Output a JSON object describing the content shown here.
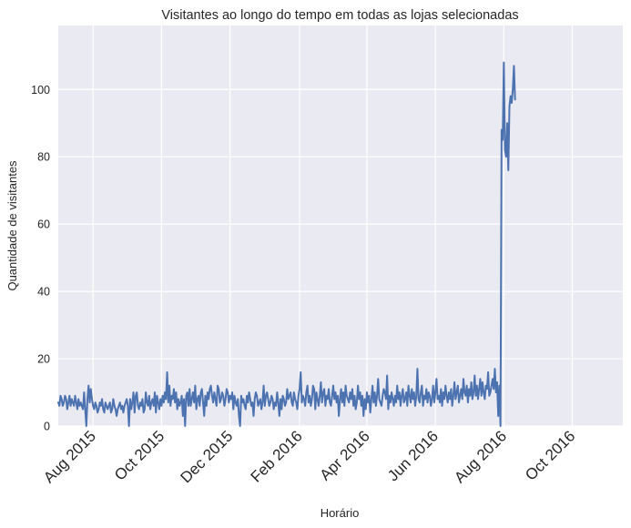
{
  "chart_data": {
    "type": "line",
    "title": "Visitantes ao longo do tempo em todas as lojas selecionadas",
    "xlabel": "Horário",
    "ylabel": "Quantidade de visitantes",
    "x_range": [
      "2015-07-01",
      "2016-11-15"
    ],
    "ylim": [
      0,
      119
    ],
    "y_ticks": [
      0,
      20,
      40,
      60,
      80,
      100
    ],
    "x_ticks": [
      {
        "date": "2015-08-01",
        "label": "Aug 2015"
      },
      {
        "date": "2015-10-01",
        "label": "Oct 2015"
      },
      {
        "date": "2015-12-01",
        "label": "Dec 2015"
      },
      {
        "date": "2016-02-01",
        "label": "Feb 2016"
      },
      {
        "date": "2016-04-01",
        "label": "Apr 2016"
      },
      {
        "date": "2016-06-01",
        "label": "Jun 2016"
      },
      {
        "date": "2016-08-01",
        "label": "Aug 2016"
      },
      {
        "date": "2016-10-01",
        "label": "Oct 2016"
      }
    ],
    "grid": true,
    "background": "#eaeaf2",
    "line_color": "#4c72b0",
    "series": [
      {
        "start_date": "2015-07-01",
        "step_days": 1,
        "values": [
          7,
          6,
          9,
          8,
          6,
          7,
          9,
          8,
          5,
          7,
          9,
          6,
          8,
          7,
          6,
          9,
          7,
          5,
          8,
          6,
          7,
          6,
          5,
          10,
          5,
          0,
          8,
          12,
          7,
          11,
          8,
          6,
          5,
          7,
          6,
          4,
          5,
          7,
          6,
          8,
          5,
          4,
          7,
          6,
          5,
          6,
          7,
          4,
          5,
          8,
          6,
          5,
          3,
          5,
          6,
          7,
          5,
          6,
          4,
          6,
          7,
          8,
          6,
          0,
          8,
          5,
          7,
          10,
          4,
          9,
          10,
          6,
          5,
          7,
          6,
          8,
          4,
          5,
          10,
          7,
          6,
          9,
          5,
          7,
          8,
          6,
          10,
          4,
          9,
          7,
          5,
          8,
          6,
          9,
          7,
          10,
          8,
          16,
          7,
          12,
          6,
          9,
          8,
          11,
          7,
          10,
          5,
          8,
          6,
          7,
          9,
          3,
          8,
          0,
          9,
          10,
          6,
          11,
          6,
          8,
          10,
          7,
          12,
          5,
          8,
          9,
          6,
          10,
          11,
          7,
          3,
          9,
          6,
          10,
          8,
          11,
          12,
          9,
          7,
          10,
          8,
          6,
          12,
          11,
          7,
          8,
          10,
          9,
          6,
          8,
          11,
          10,
          7,
          9,
          8,
          10,
          5,
          9,
          7,
          6,
          8,
          3,
          0,
          9,
          7,
          8,
          6,
          5,
          9,
          7,
          10,
          8,
          6,
          7,
          3,
          8,
          10,
          9,
          6,
          7,
          8,
          5,
          7,
          12,
          6,
          9,
          10,
          8,
          6,
          7,
          9,
          8,
          5,
          7,
          6,
          10,
          7,
          3,
          8,
          5,
          9,
          8,
          6,
          7,
          11,
          8,
          9,
          10,
          7,
          6,
          10,
          8,
          7,
          5,
          9,
          11,
          16,
          7,
          9,
          8,
          6,
          10,
          12,
          7,
          9,
          6,
          8,
          12,
          11,
          5,
          10,
          8,
          6,
          9,
          13,
          7,
          10,
          11,
          6,
          9,
          8,
          11,
          7,
          6,
          9,
          12,
          8,
          10,
          7,
          9,
          3,
          8,
          11,
          7,
          10,
          6,
          12,
          9,
          8,
          7,
          10,
          8,
          11,
          6,
          9,
          5,
          7,
          12,
          8,
          10,
          6,
          9,
          3,
          8,
          5,
          10,
          7,
          9,
          4,
          8,
          12,
          7,
          10,
          6,
          9,
          14,
          8,
          7,
          6,
          9,
          11,
          10,
          8,
          15,
          5,
          9,
          7,
          10,
          8,
          6,
          9,
          7,
          12,
          8,
          10,
          6,
          9,
          11,
          7,
          8,
          10,
          6,
          12,
          9,
          7,
          11,
          8,
          10,
          6,
          9,
          17,
          8,
          7,
          10,
          12,
          6,
          9,
          8,
          11,
          7,
          10,
          9,
          6,
          8,
          12,
          7,
          10,
          14,
          8,
          9,
          7,
          11,
          6,
          10,
          8,
          12,
          9,
          7,
          10,
          8,
          11,
          6,
          9,
          13,
          8,
          10,
          12,
          7,
          9,
          11,
          8,
          14,
          10,
          9,
          12,
          7,
          11,
          9,
          13,
          8,
          10,
          15,
          9,
          12,
          8,
          11,
          14,
          9,
          13,
          10,
          8,
          12,
          11,
          16,
          9,
          10,
          12,
          14,
          11,
          17,
          10,
          13,
          3,
          12,
          0,
          88,
          85,
          108,
          82,
          80,
          90,
          76,
          95,
          98,
          96,
          100,
          107,
          97
        ]
      }
    ]
  }
}
